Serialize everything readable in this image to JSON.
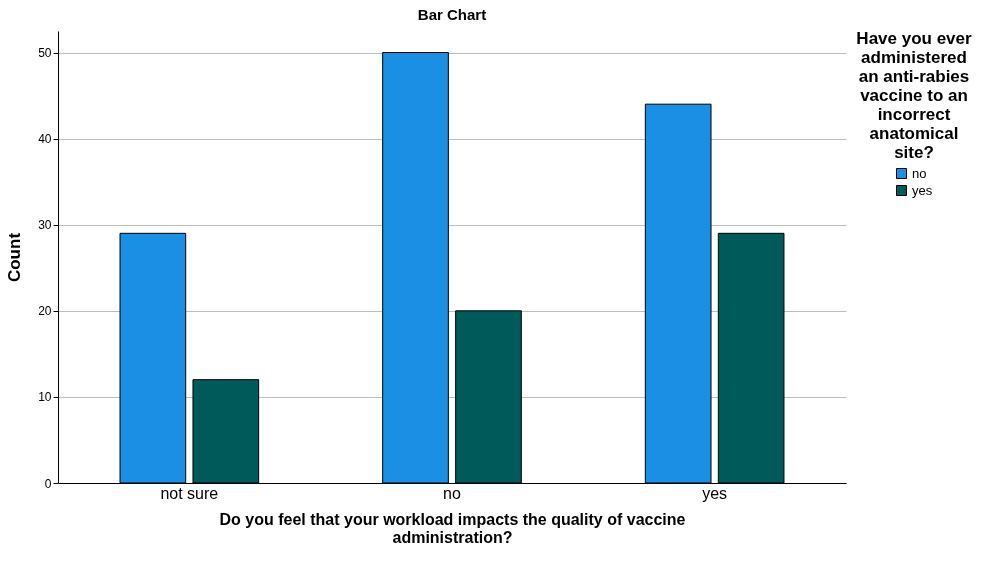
{
  "chart_data": {
    "type": "bar",
    "title": "Bar Chart",
    "xlabel": "Do you feel that your workload impacts the quality of vaccine administration?",
    "ylabel": "Count",
    "legend_title": "Have you ever administered an anti-rabies vaccine to an incorrect anatomical site?",
    "categories": [
      "not sure",
      "no",
      "yes"
    ],
    "series": [
      {
        "name": "no",
        "color": "#1a8fe3",
        "values": [
          29,
          50,
          44
        ]
      },
      {
        "name": "yes",
        "color": "#005a5a",
        "values": [
          12,
          20,
          29
        ]
      }
    ],
    "ylim": [
      0,
      52.5
    ],
    "yticks": [
      0,
      10,
      20,
      30,
      40,
      50
    ],
    "grid": "y",
    "legend": "top right"
  }
}
